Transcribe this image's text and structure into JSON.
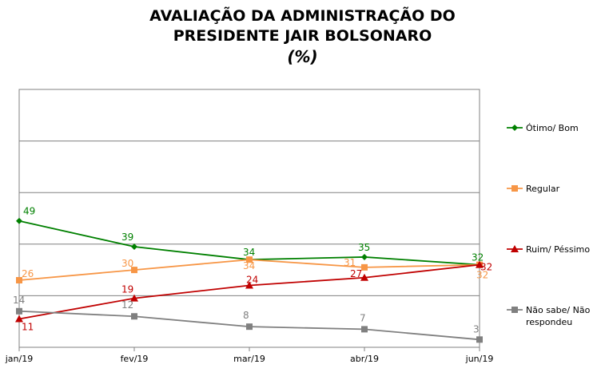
{
  "header": {
    "title_line1": "AVALIAÇÃO DA ADMINISTRAÇÃO DO",
    "title_line2": "PRESIDENTE JAIR BOLSONARO",
    "subtitle": "(%)"
  },
  "chart_data": {
    "type": "line",
    "categories": [
      "jan/19",
      "fev/19",
      "mar/19",
      "abr/19",
      "jun/19"
    ],
    "ylim": [
      0,
      100
    ],
    "grid": true,
    "legend_position": "right",
    "series": [
      {
        "name": "Ótimo/ Bom",
        "values": [
          49,
          39,
          34,
          35,
          32
        ],
        "color": "#008000",
        "marker": "diamond"
      },
      {
        "name": "Regular",
        "values": [
          26,
          30,
          34,
          31,
          32
        ],
        "color": "#F79646",
        "marker": "square"
      },
      {
        "name": "Ruim/ Péssimo",
        "values": [
          11,
          19,
          24,
          27,
          32
        ],
        "color": "#C00000",
        "marker": "triangle"
      },
      {
        "name": "Não sabe/ Não respondeu",
        "values": [
          14,
          12,
          8,
          7,
          3
        ],
        "color": "#808080",
        "marker": "square"
      }
    ]
  }
}
